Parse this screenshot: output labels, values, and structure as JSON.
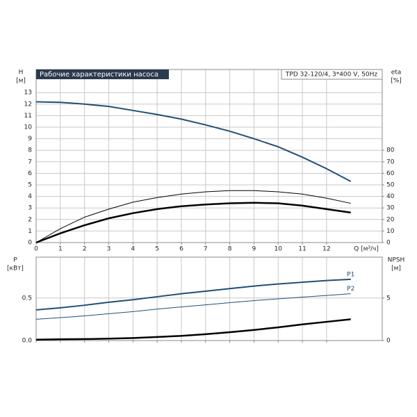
{
  "chart_data": [
    {
      "type": "line",
      "title": "Рабочие характеристики насоса",
      "subtitle": "TPD 32-120/4, 3*400 V, 50Hz",
      "x_label": "Q [м³/ч]",
      "y_label": "H",
      "y_unit": "[м]",
      "y2_label": "eta",
      "y2_unit": "[%]",
      "x": [
        0,
        1,
        2,
        3,
        4,
        5,
        6,
        7,
        8,
        9,
        10,
        11,
        12,
        13
      ],
      "xlim": [
        0,
        14.3
      ],
      "xticks": [
        0,
        1,
        2,
        3,
        4,
        5,
        6,
        7,
        8,
        9,
        10,
        11,
        12
      ],
      "ylim": [
        0,
        15
      ],
      "yticks": [
        0,
        1,
        2,
        3,
        4,
        5,
        6,
        7,
        8,
        9,
        10,
        11,
        12,
        13
      ],
      "y2lim": [
        0,
        150
      ],
      "y2ticks": [
        0,
        10,
        20,
        30,
        40,
        50,
        60,
        70,
        80
      ],
      "grid": true,
      "series": [
        {
          "color": "#1f4e79",
          "line_width": 2,
          "values": [
            12.2,
            12.15,
            12.0,
            11.8,
            11.45,
            11.1,
            10.7,
            10.2,
            9.65,
            9.0,
            8.3,
            7.4,
            6.4,
            5.3
          ]
        },
        {
          "color": "#000000",
          "line_width": 1,
          "axis": "y2",
          "values": [
            0,
            12,
            22,
            29,
            35,
            39,
            42,
            44,
            45,
            45,
            44,
            42,
            38.5,
            34
          ]
        },
        {
          "color": "#000000",
          "line_width": 2.5,
          "axis": "y2",
          "values": [
            0,
            8,
            15,
            21,
            25.5,
            29,
            31.5,
            33,
            34,
            34.5,
            34,
            32,
            29,
            26
          ]
        }
      ]
    },
    {
      "type": "line",
      "y_label": "P",
      "y_unit": "[кВт]",
      "y2_label": "NPSH",
      "y2_unit": "[м]",
      "x": [
        0,
        1,
        2,
        3,
        4,
        5,
        6,
        7,
        8,
        9,
        10,
        11,
        12,
        13
      ],
      "xlim": [
        0,
        14.3
      ],
      "ylim": [
        0,
        0.98
      ],
      "yticks": [
        {
          "value": 0,
          "label": "0.0"
        },
        0.5
      ],
      "y2lim": [
        0,
        9.8
      ],
      "y2ticks": [
        0,
        5
      ],
      "grid": true,
      "series": [
        {
          "name": "P1",
          "color": "#1f4e79",
          "line_width": 2,
          "values": [
            0.36,
            0.385,
            0.415,
            0.45,
            0.48,
            0.515,
            0.55,
            0.58,
            0.61,
            0.64,
            0.665,
            0.685,
            0.705,
            0.72
          ]
        },
        {
          "name": "P2",
          "color": "#1f4e79",
          "line_width": 1,
          "values": [
            0.25,
            0.27,
            0.29,
            0.315,
            0.34,
            0.37,
            0.395,
            0.42,
            0.445,
            0.47,
            0.49,
            0.51,
            0.53,
            0.55
          ]
        },
        {
          "color": "#000000",
          "line_width": 2.5,
          "axis": "y2",
          "values": [
            0.1,
            0.15,
            0.17,
            0.22,
            0.3,
            0.42,
            0.55,
            0.75,
            0.98,
            1.25,
            1.55,
            1.9,
            2.2,
            2.5
          ]
        }
      ]
    }
  ]
}
